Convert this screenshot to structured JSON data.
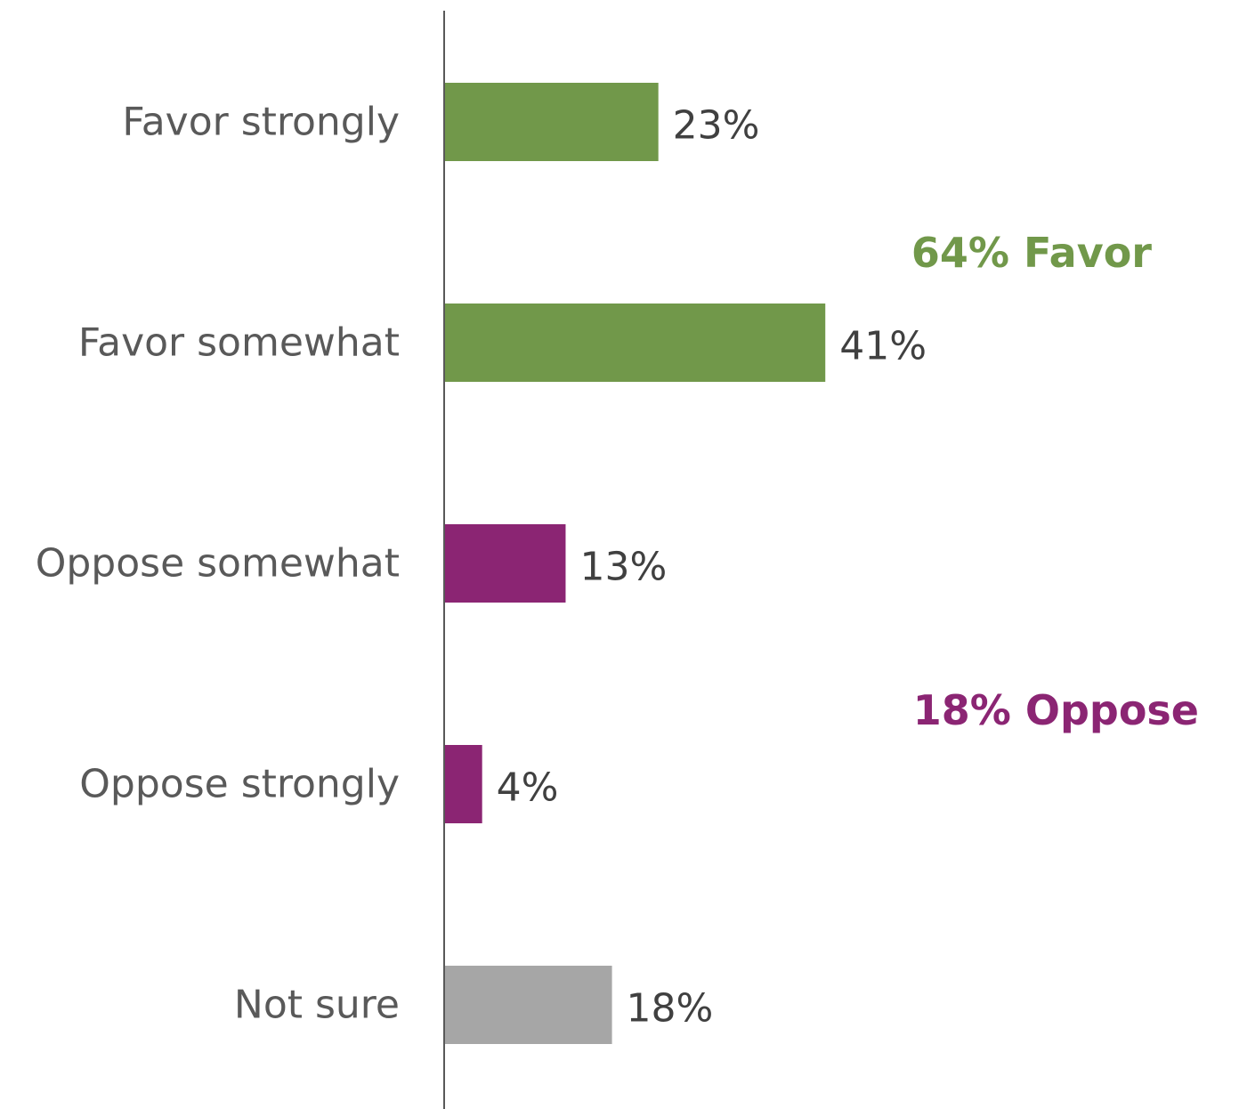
{
  "chart_data": {
    "type": "bar",
    "orientation": "horizontal",
    "categories": [
      "Favor strongly",
      "Favor somewhat",
      "Oppose somewhat",
      "Oppose strongly",
      "Not sure"
    ],
    "values": [
      23,
      41,
      13,
      4,
      18
    ],
    "value_labels": [
      "23%",
      "41%",
      "13%",
      "4%",
      "18%"
    ],
    "bar_colors": [
      "#71984A",
      "#71984A",
      "#8B2573",
      "#8B2573",
      "#A6A6A6"
    ],
    "xlim": [
      0,
      100
    ],
    "grid": false,
    "legend": "none",
    "annotations": [
      {
        "text": "64% Favor",
        "color": "#71984A"
      },
      {
        "text": "18% Oppose",
        "color": "#8B2573"
      }
    ]
  }
}
